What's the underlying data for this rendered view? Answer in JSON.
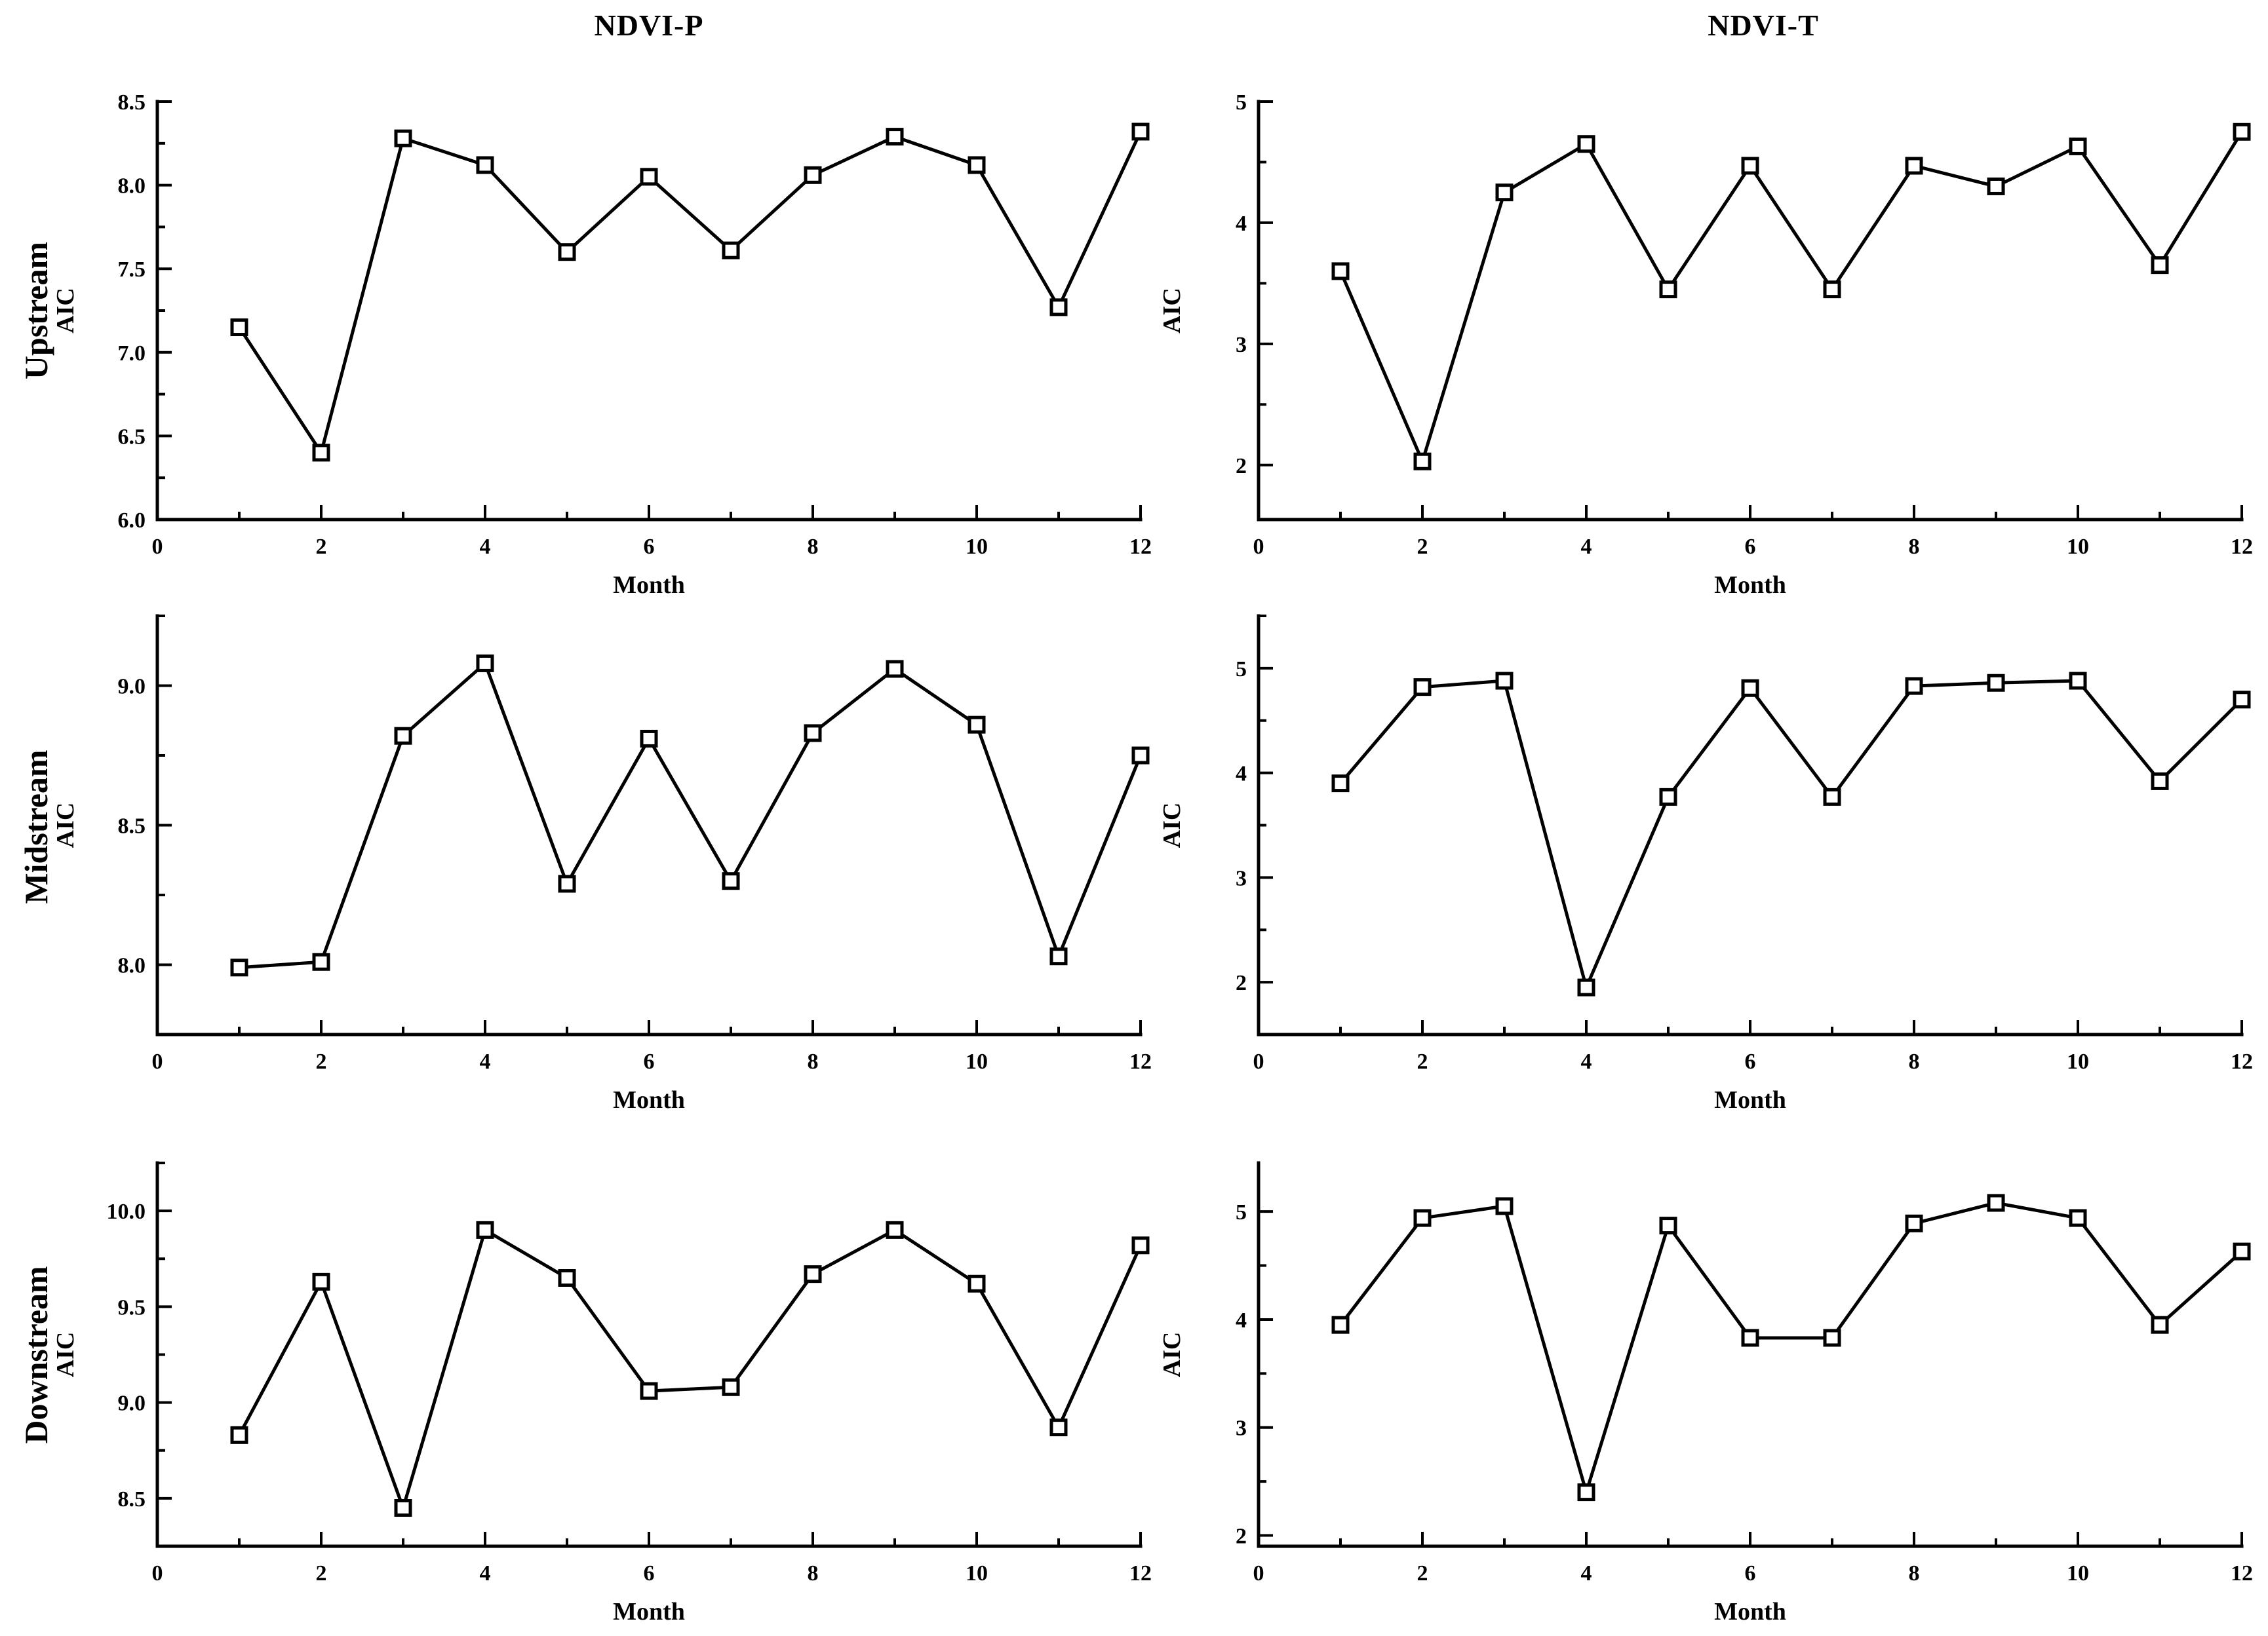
{
  "page": {
    "background": "#ffffff",
    "line_color": "#000000",
    "marker_style": "open-square",
    "marker_fill": "#ffffff"
  },
  "columns": [
    {
      "title": "NDVI-P"
    },
    {
      "title": "NDVI-T"
    }
  ],
  "rows": [
    {
      "label": "Upstream"
    },
    {
      "label": "Midstream"
    },
    {
      "label": "Downstream"
    }
  ],
  "axis": {
    "xlabel": "Month",
    "ylabel": "AIC"
  },
  "chart_data": [
    {
      "type": "line",
      "row": "Upstream",
      "col": "NDVI-P",
      "title": "NDVI-P",
      "xlabel": "Month",
      "ylabel": "AIC",
      "x": [
        1,
        2,
        3,
        4,
        5,
        6,
        7,
        8,
        9,
        10,
        11,
        12
      ],
      "values": [
        7.15,
        6.4,
        8.28,
        8.12,
        7.6,
        8.05,
        7.61,
        8.06,
        8.29,
        8.12,
        7.27,
        8.32
      ],
      "xlim": [
        0,
        12
      ],
      "ylim": [
        6.0,
        8.5
      ],
      "x_major_ticks": [
        0,
        2,
        4,
        6,
        8,
        10,
        12
      ],
      "x_tick_labels": [
        "0",
        "2",
        "4",
        "6",
        "8",
        "10",
        "12"
      ],
      "x_minor_ticks": [
        1,
        3,
        5,
        7,
        9,
        11
      ],
      "y_major_ticks": [
        6.0,
        6.5,
        7.0,
        7.5,
        8.0,
        8.5
      ],
      "y_tick_labels": [
        "6.0",
        "6.5",
        "7.0",
        "7.5",
        "8.0",
        "8.5"
      ],
      "y_minor_ticks": [
        6.25,
        6.75,
        7.25,
        7.75,
        8.25
      ],
      "grid": false,
      "legend": "none"
    },
    {
      "type": "line",
      "row": "Upstream",
      "col": "NDVI-T",
      "title": "NDVI-T",
      "xlabel": "Month",
      "ylabel": "AIC",
      "x": [
        1,
        2,
        3,
        4,
        5,
        6,
        7,
        8,
        9,
        10,
        11,
        12
      ],
      "values": [
        3.6,
        2.03,
        4.25,
        4.65,
        3.45,
        4.47,
        3.45,
        4.47,
        4.3,
        4.63,
        3.65,
        4.75
      ],
      "xlim": [
        0,
        12
      ],
      "ylim": [
        1.55,
        5.0
      ],
      "x_major_ticks": [
        0,
        2,
        4,
        6,
        8,
        10,
        12
      ],
      "x_tick_labels": [
        "0",
        "2",
        "4",
        "6",
        "8",
        "10",
        "12"
      ],
      "x_minor_ticks": [
        1,
        3,
        5,
        7,
        9,
        11
      ],
      "y_major_ticks": [
        2,
        3,
        4,
        5
      ],
      "y_tick_labels": [
        "2",
        "3",
        "4",
        "5"
      ],
      "y_minor_ticks": [
        2.5,
        3.5,
        4.5
      ],
      "grid": false,
      "legend": "none"
    },
    {
      "type": "line",
      "row": "Midstream",
      "col": "NDVI-P",
      "title": "",
      "xlabel": "Month",
      "ylabel": "AIC",
      "x": [
        1,
        2,
        3,
        4,
        5,
        6,
        7,
        8,
        9,
        10,
        11,
        12
      ],
      "values": [
        7.99,
        8.01,
        8.82,
        9.08,
        8.29,
        8.81,
        8.3,
        8.83,
        9.06,
        8.86,
        8.03,
        8.75
      ],
      "xlim": [
        0,
        12
      ],
      "ylim": [
        7.75,
        9.25
      ],
      "x_major_ticks": [
        0,
        2,
        4,
        6,
        8,
        10,
        12
      ],
      "x_tick_labels": [
        "0",
        "2",
        "4",
        "6",
        "8",
        "10",
        "12"
      ],
      "x_minor_ticks": [
        1,
        3,
        5,
        7,
        9,
        11
      ],
      "y_major_ticks": [
        8.0,
        8.5,
        9.0
      ],
      "y_tick_labels": [
        "8.0",
        "8.5",
        "9.0"
      ],
      "y_minor_ticks": [
        8.25,
        8.75,
        9.25
      ],
      "grid": false,
      "legend": "none"
    },
    {
      "type": "line",
      "row": "Midstream",
      "col": "NDVI-T",
      "title": "",
      "xlabel": "Month",
      "ylabel": "AIC",
      "x": [
        1,
        2,
        3,
        4,
        5,
        6,
        7,
        8,
        9,
        10,
        11,
        12
      ],
      "values": [
        3.9,
        4.82,
        4.88,
        1.95,
        3.77,
        4.81,
        3.77,
        4.83,
        4.86,
        4.88,
        3.92,
        4.7
      ],
      "xlim": [
        0,
        12
      ],
      "ylim": [
        1.5,
        5.5
      ],
      "x_major_ticks": [
        0,
        2,
        4,
        6,
        8,
        10,
        12
      ],
      "x_tick_labels": [
        "0",
        "2",
        "4",
        "6",
        "8",
        "10",
        "12"
      ],
      "x_minor_ticks": [
        1,
        3,
        5,
        7,
        9,
        11
      ],
      "y_major_ticks": [
        2,
        3,
        4,
        5
      ],
      "y_tick_labels": [
        "2",
        "3",
        "4",
        "5"
      ],
      "y_minor_ticks": [
        2.5,
        3.5,
        4.5,
        5.5
      ],
      "grid": false,
      "legend": "none"
    },
    {
      "type": "line",
      "row": "Downstream",
      "col": "NDVI-P",
      "title": "",
      "xlabel": "Month",
      "ylabel": "AIC",
      "x": [
        1,
        2,
        3,
        4,
        5,
        6,
        7,
        8,
        9,
        10,
        11,
        12
      ],
      "values": [
        8.83,
        9.63,
        8.45,
        9.9,
        9.65,
        9.06,
        9.08,
        9.67,
        9.9,
        9.62,
        8.87,
        9.82
      ],
      "xlim": [
        0,
        12
      ],
      "ylim": [
        8.25,
        10.25
      ],
      "x_major_ticks": [
        0,
        2,
        4,
        6,
        8,
        10,
        12
      ],
      "x_tick_labels": [
        "0",
        "2",
        "4",
        "6",
        "8",
        "10",
        "12"
      ],
      "x_minor_ticks": [
        1,
        3,
        5,
        7,
        9,
        11
      ],
      "y_major_ticks": [
        8.5,
        9.0,
        9.5,
        10.0
      ],
      "y_tick_labels": [
        "8.5",
        "9.0",
        "9.5",
        "10.0"
      ],
      "y_minor_ticks": [
        8.75,
        9.25,
        9.75,
        10.25
      ],
      "grid": false,
      "legend": "none"
    },
    {
      "type": "line",
      "row": "Downstream",
      "col": "NDVI-T",
      "title": "",
      "xlabel": "Month",
      "ylabel": "AIC",
      "x": [
        1,
        2,
        3,
        4,
        5,
        6,
        7,
        8,
        9,
        10,
        11,
        12
      ],
      "values": [
        3.95,
        4.94,
        5.05,
        2.4,
        4.87,
        3.83,
        3.83,
        4.89,
        5.08,
        4.94,
        3.95,
        4.63
      ],
      "xlim": [
        0,
        12
      ],
      "ylim": [
        1.9,
        5.45
      ],
      "x_major_ticks": [
        0,
        2,
        4,
        6,
        8,
        10,
        12
      ],
      "x_tick_labels": [
        "0",
        "2",
        "4",
        "6",
        "8",
        "10",
        "12"
      ],
      "x_minor_ticks": [
        1,
        3,
        5,
        7,
        9,
        11
      ],
      "y_major_ticks": [
        2,
        3,
        4,
        5
      ],
      "y_tick_labels": [
        "2",
        "3",
        "4",
        "5"
      ],
      "y_minor_ticks": [
        2.5,
        3.5,
        4.5
      ],
      "grid": false,
      "legend": "none"
    }
  ]
}
